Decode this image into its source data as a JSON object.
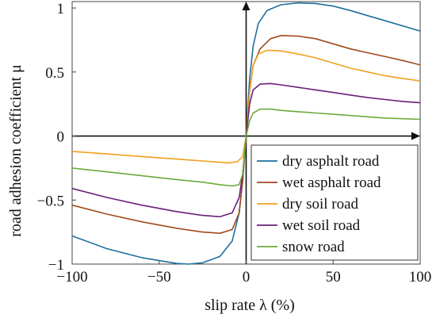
{
  "chart_data": {
    "type": "line",
    "xlabel": "slip rate λ (%)",
    "ylabel": "road adhesion coefficient μ",
    "xlim": [
      -100,
      100
    ],
    "ylim": [
      -1,
      1.05
    ],
    "xticks": [
      -100,
      -50,
      0,
      50,
      100
    ],
    "xtick_labels": [
      "−100",
      "−50",
      "0",
      "50",
      "100"
    ],
    "yticks": [
      -1,
      -0.5,
      0,
      0.5,
      1
    ],
    "ytick_labels": [
      "−1",
      "−0.5",
      "0",
      "0.5",
      "1"
    ],
    "grid": false,
    "legend_position": "bottom-right",
    "series": [
      {
        "name": "dry asphalt road",
        "color": "#1f6f9f",
        "points": [
          [
            -100,
            -0.78
          ],
          [
            -80,
            -0.88
          ],
          [
            -60,
            -0.95
          ],
          [
            -40,
            -0.995
          ],
          [
            -33,
            -1.0
          ],
          [
            -25,
            -0.99
          ],
          [
            -15,
            -0.94
          ],
          [
            -8,
            -0.82
          ],
          [
            -4,
            -0.6
          ],
          [
            -2,
            -0.35
          ],
          [
            0,
            0
          ],
          [
            2,
            0.45
          ],
          [
            4,
            0.7
          ],
          [
            7,
            0.88
          ],
          [
            12,
            0.98
          ],
          [
            20,
            1.025
          ],
          [
            30,
            1.04
          ],
          [
            40,
            1.035
          ],
          [
            50,
            1.015
          ],
          [
            60,
            0.98
          ],
          [
            70,
            0.94
          ],
          [
            80,
            0.9
          ],
          [
            90,
            0.86
          ],
          [
            100,
            0.82
          ]
        ]
      },
      {
        "name": "wet asphalt road",
        "color": "#a34a1c",
        "points": [
          [
            -100,
            -0.54
          ],
          [
            -80,
            -0.61
          ],
          [
            -60,
            -0.67
          ],
          [
            -40,
            -0.72
          ],
          [
            -25,
            -0.75
          ],
          [
            -15,
            -0.76
          ],
          [
            -8,
            -0.73
          ],
          [
            -4,
            -0.6
          ],
          [
            -2,
            -0.35
          ],
          [
            0,
            0
          ],
          [
            2,
            0.35
          ],
          [
            4,
            0.55
          ],
          [
            8,
            0.68
          ],
          [
            14,
            0.76
          ],
          [
            20,
            0.785
          ],
          [
            30,
            0.78
          ],
          [
            40,
            0.76
          ],
          [
            50,
            0.72
          ],
          [
            60,
            0.68
          ],
          [
            70,
            0.65
          ],
          [
            80,
            0.62
          ],
          [
            90,
            0.59
          ],
          [
            100,
            0.555
          ]
        ]
      },
      {
        "name": "dry soil road",
        "color": "#f0a020",
        "points": [
          [
            -100,
            -0.12
          ],
          [
            -80,
            -0.14
          ],
          [
            -60,
            -0.16
          ],
          [
            -40,
            -0.18
          ],
          [
            -20,
            -0.2
          ],
          [
            -10,
            -0.21
          ],
          [
            -5,
            -0.2
          ],
          [
            -2,
            -0.16
          ],
          [
            0,
            0
          ],
          [
            2,
            0.35
          ],
          [
            4,
            0.55
          ],
          [
            7,
            0.64
          ],
          [
            12,
            0.67
          ],
          [
            20,
            0.665
          ],
          [
            30,
            0.64
          ],
          [
            40,
            0.61
          ],
          [
            50,
            0.57
          ],
          [
            60,
            0.53
          ],
          [
            70,
            0.5
          ],
          [
            80,
            0.47
          ],
          [
            90,
            0.45
          ],
          [
            100,
            0.43
          ]
        ]
      },
      {
        "name": "wet soil road",
        "color": "#6a1f7a",
        "points": [
          [
            -100,
            -0.41
          ],
          [
            -80,
            -0.48
          ],
          [
            -60,
            -0.54
          ],
          [
            -40,
            -0.59
          ],
          [
            -25,
            -0.62
          ],
          [
            -15,
            -0.63
          ],
          [
            -8,
            -0.6
          ],
          [
            -4,
            -0.48
          ],
          [
            -2,
            -0.3
          ],
          [
            0,
            0
          ],
          [
            2,
            0.25
          ],
          [
            4,
            0.36
          ],
          [
            8,
            0.405
          ],
          [
            14,
            0.41
          ],
          [
            20,
            0.4
          ],
          [
            30,
            0.38
          ],
          [
            40,
            0.36
          ],
          [
            50,
            0.34
          ],
          [
            60,
            0.32
          ],
          [
            70,
            0.3
          ],
          [
            80,
            0.285
          ],
          [
            90,
            0.27
          ],
          [
            100,
            0.26
          ]
        ]
      },
      {
        "name": "snow road",
        "color": "#6aab3a",
        "points": [
          [
            -100,
            -0.25
          ],
          [
            -80,
            -0.28
          ],
          [
            -60,
            -0.31
          ],
          [
            -40,
            -0.34
          ],
          [
            -25,
            -0.36
          ],
          [
            -15,
            -0.38
          ],
          [
            -8,
            -0.39
          ],
          [
            -4,
            -0.38
          ],
          [
            -2,
            -0.3
          ],
          [
            0,
            0
          ],
          [
            2,
            0.12
          ],
          [
            4,
            0.18
          ],
          [
            8,
            0.21
          ],
          [
            14,
            0.21
          ],
          [
            20,
            0.2
          ],
          [
            30,
            0.19
          ],
          [
            40,
            0.18
          ],
          [
            50,
            0.17
          ],
          [
            60,
            0.16
          ],
          [
            70,
            0.15
          ],
          [
            80,
            0.14
          ],
          [
            90,
            0.135
          ],
          [
            100,
            0.13
          ]
        ]
      }
    ]
  }
}
